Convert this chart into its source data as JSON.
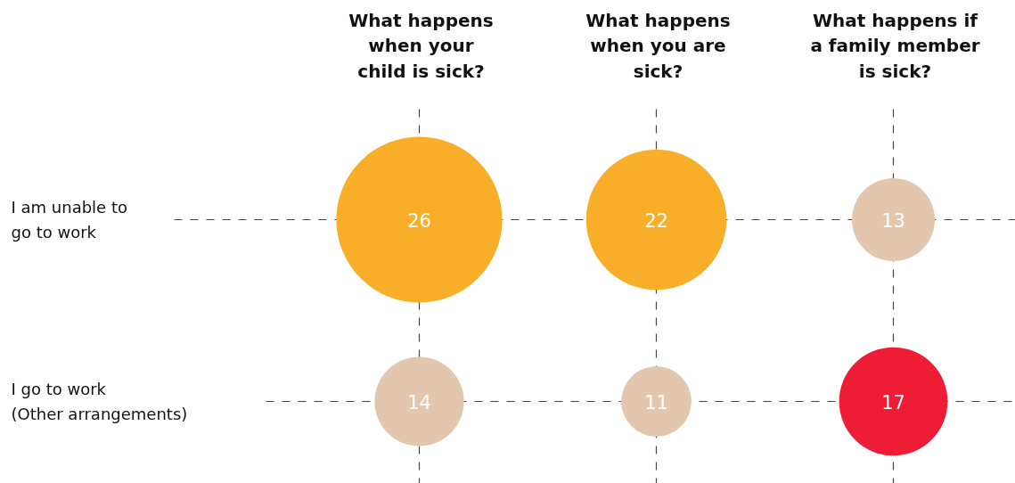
{
  "chart_data": {
    "type": "other",
    "categories": [
      "What happens\nwhen your\nchild is sick?",
      "What happens\nwhen you are\nsick?",
      "What happens if\na family member\nis sick?"
    ],
    "series": [
      {
        "values": [
          26,
          22,
          13
        ],
        "colors": [
          "#f9ae2a",
          "#f9ae2a",
          "#e2c6ae"
        ]
      },
      {
        "values": [
          14,
          11,
          17
        ],
        "colors": [
          "#e2c6ae",
          "#e2c6ae",
          "#ee1c34"
        ]
      }
    ],
    "annotations": [
      "I am unable to\ngo to work",
      "I go to work\n(Other arrangements)"
    ],
    "data_labels": true
  }
}
